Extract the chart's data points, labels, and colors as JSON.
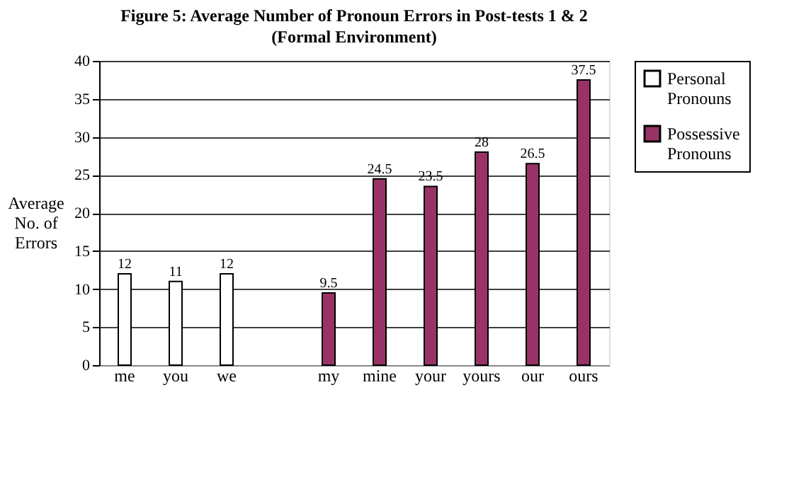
{
  "chart_data": {
    "type": "bar",
    "title": "Figure 5: Average Number of Pronoun Errors  in Post-tests 1 & 2",
    "subtitle": "(Formal Environment)",
    "ylabel": "Average No. of Errors",
    "categories": [
      "me",
      "you",
      "we",
      null,
      "my",
      "mine",
      "your",
      "yours",
      "our",
      "ours"
    ],
    "series": [
      {
        "name": "Personal Pronouns",
        "color": "#ffffff",
        "values": [
          12,
          11,
          12,
          null,
          null,
          null,
          null,
          null,
          null,
          null
        ]
      },
      {
        "name": "Possessive Pronouns",
        "color": "#993366",
        "values": [
          null,
          null,
          null,
          null,
          9.5,
          24.5,
          23.5,
          28,
          26.5,
          37.5
        ]
      }
    ],
    "ylim": [
      0,
      40
    ],
    "yticks": [
      0,
      5,
      10,
      15,
      20,
      25,
      30,
      35,
      40
    ],
    "grid": "y",
    "legend": "right",
    "data_labels": true
  }
}
